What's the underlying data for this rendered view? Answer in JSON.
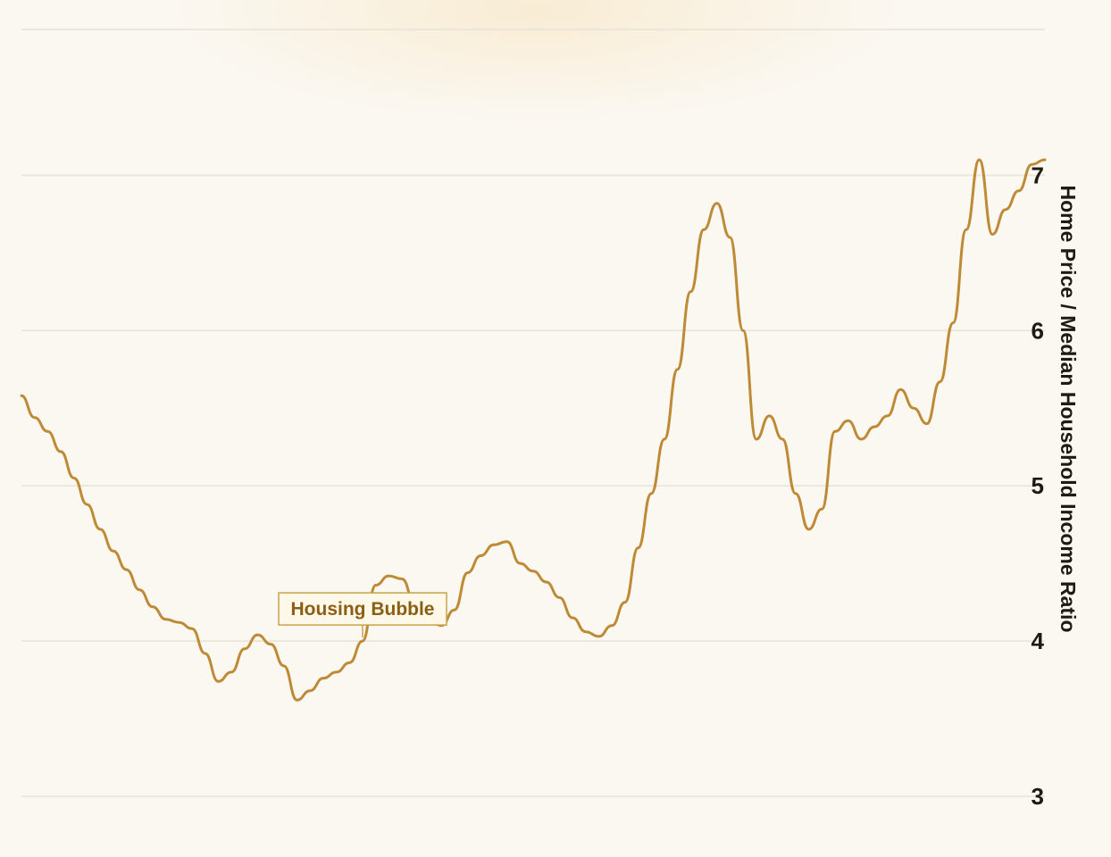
{
  "colors": {
    "line": "#bf8a35",
    "grid": "#e9e3d8",
    "annotation_border": "#c9a24a",
    "annotation_fill": "#fdf8e8",
    "annotation_text": "#8a5e14"
  },
  "chart_data": {
    "type": "line",
    "ylabel": "Home Price / Median Household Income Ratio",
    "y_axis_position": "right",
    "ylim": [
      2.95,
      7.95
    ],
    "y_ticks": [
      3,
      4,
      5,
      6,
      7
    ],
    "y_tick_labels": [
      "3",
      "4",
      "5",
      "6",
      "7"
    ],
    "grid": true,
    "x_axis_labels_visible": false,
    "annotations": [
      {
        "text": "Housing Bubble",
        "point_index": 26
      }
    ],
    "series": [
      {
        "values": [
          5.58,
          5.44,
          5.35,
          5.22,
          5.05,
          4.88,
          4.72,
          4.58,
          4.46,
          4.33,
          4.22,
          4.14,
          4.12,
          4.08,
          3.92,
          3.74,
          3.8,
          3.95,
          4.04,
          3.98,
          3.84,
          3.62,
          3.68,
          3.76,
          3.8,
          3.86,
          4.0,
          4.36,
          4.42,
          4.4,
          4.24,
          4.13,
          4.1,
          4.2,
          4.44,
          4.55,
          4.62,
          4.64,
          4.5,
          4.45,
          4.38,
          4.28,
          4.15,
          4.06,
          4.03,
          4.1,
          4.25,
          4.6,
          4.95,
          5.3,
          5.75,
          6.25,
          6.65,
          6.82,
          6.6,
          6.0,
          5.3,
          5.45,
          5.3,
          4.95,
          4.72,
          4.85,
          5.35,
          5.42,
          5.3,
          5.38,
          5.45,
          5.62,
          5.5,
          5.4,
          5.67,
          6.05,
          6.65,
          7.1,
          6.62,
          6.78,
          6.9,
          7.07,
          7.1
        ]
      }
    ]
  }
}
